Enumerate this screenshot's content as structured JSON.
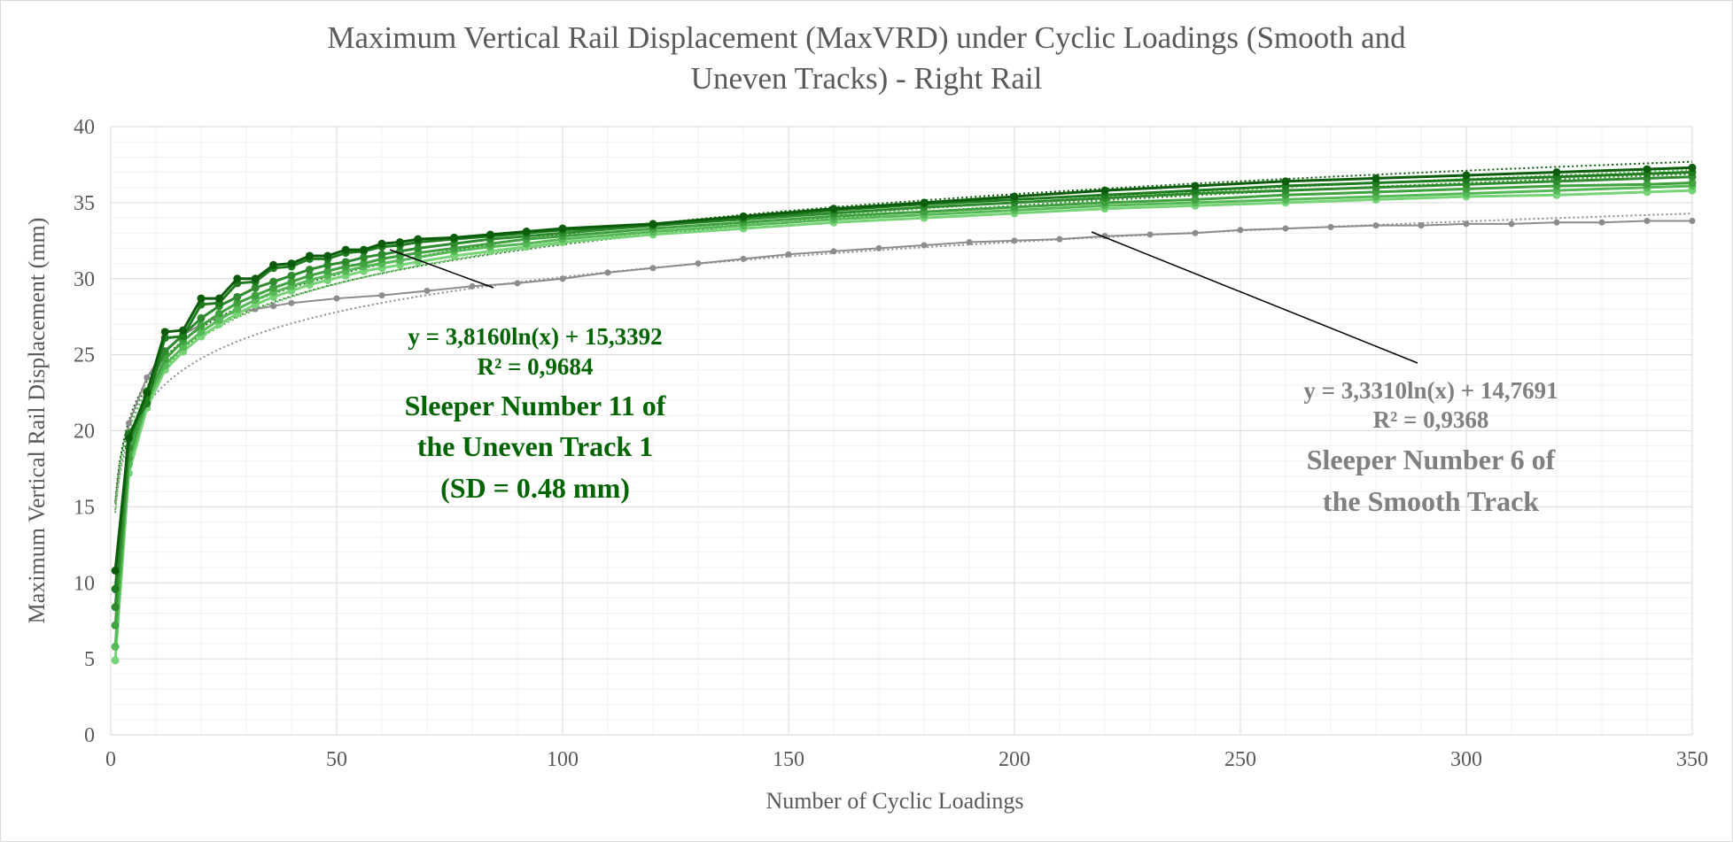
{
  "chart_data": {
    "type": "line",
    "title": "Maximum Vertical Rail Displacement (MaxVRD) under Cyclic Loadings (Smooth and Uneven Tracks) - Right Rail",
    "title_lines": [
      "Maximum Vertical Rail Displacement (MaxVRD) under Cyclic Loadings (Smooth and",
      "Uneven Tracks) - Right Rail"
    ],
    "xlabel": "Number of Cyclic Loadings",
    "ylabel": "Maximum Vertical Rail Displacement (mm)",
    "xlim": [
      0,
      350
    ],
    "ylim": [
      0,
      40
    ],
    "x_ticks": [
      0,
      50,
      100,
      150,
      200,
      250,
      300,
      350
    ],
    "y_ticks": [
      0,
      5,
      10,
      15,
      20,
      25,
      30,
      35,
      40
    ],
    "grid": true,
    "minor_grid": true,
    "legend": "none",
    "series": [
      {
        "color": "#0b5d0b",
        "x": [
          1,
          4,
          8,
          12,
          16,
          20,
          24,
          28,
          32,
          36,
          40,
          44,
          48,
          52,
          56,
          60,
          64,
          68,
          76,
          84,
          92,
          100,
          120,
          140,
          160,
          180,
          200,
          220,
          240,
          260,
          280,
          300,
          320,
          340,
          350
        ],
        "values": [
          10.8,
          19.5,
          22.5,
          26.5,
          26.6,
          28.7,
          28.7,
          30.0,
          30.0,
          30.9,
          31.0,
          31.5,
          31.5,
          31.9,
          31.9,
          32.3,
          32.4,
          32.6,
          32.7,
          32.9,
          33.1,
          33.3,
          33.6,
          34.1,
          34.6,
          35.0,
          35.4,
          35.8,
          36.1,
          36.4,
          36.6,
          36.8,
          37.0,
          37.2,
          37.3
        ]
      },
      {
        "color": "#1e7b1e",
        "x": [
          1,
          4,
          8,
          12,
          16,
          20,
          24,
          28,
          32,
          36,
          40,
          44,
          48,
          52,
          56,
          60,
          64,
          68,
          76,
          84,
          92,
          100,
          120,
          140,
          160,
          180,
          200,
          220,
          240,
          260,
          280,
          300,
          320,
          340,
          350
        ],
        "values": [
          9.6,
          19.8,
          21.8,
          26.1,
          26.2,
          28.3,
          28.4,
          29.7,
          29.8,
          30.7,
          30.8,
          31.3,
          31.3,
          31.7,
          31.8,
          32.1,
          32.2,
          32.4,
          32.6,
          32.8,
          33.0,
          33.2,
          33.5,
          34.0,
          34.5,
          34.9,
          35.2,
          35.5,
          35.8,
          36.1,
          36.3,
          36.5,
          36.7,
          36.9,
          37.0
        ]
      },
      {
        "color": "#2e8b2e",
        "x": [
          1,
          4,
          8,
          12,
          16,
          20,
          24,
          28,
          32,
          36,
          40,
          44,
          48,
          52,
          56,
          60,
          64,
          68,
          76,
          84,
          92,
          100,
          120,
          140,
          160,
          180,
          200,
          220,
          240,
          260,
          280,
          300,
          320,
          340,
          350
        ],
        "values": [
          8.4,
          18.9,
          22.6,
          25.2,
          26.3,
          27.4,
          28.2,
          28.8,
          29.4,
          29.8,
          30.2,
          30.6,
          30.9,
          31.1,
          31.4,
          31.6,
          31.8,
          32.0,
          32.3,
          32.6,
          32.8,
          33.0,
          33.5,
          33.9,
          34.3,
          34.7,
          35.0,
          35.3,
          35.6,
          35.8,
          36.0,
          36.2,
          36.4,
          36.6,
          36.7
        ]
      },
      {
        "color": "#3fa23f",
        "x": [
          1,
          4,
          8,
          12,
          16,
          20,
          24,
          28,
          32,
          36,
          40,
          44,
          48,
          52,
          56,
          60,
          64,
          68,
          76,
          84,
          92,
          100,
          120,
          140,
          160,
          180,
          200,
          220,
          240,
          260,
          280,
          300,
          320,
          340,
          350
        ],
        "values": [
          7.2,
          18.2,
          22.2,
          24.7,
          25.9,
          26.9,
          27.7,
          28.4,
          28.9,
          29.4,
          29.8,
          30.2,
          30.5,
          30.8,
          31.0,
          31.3,
          31.5,
          31.7,
          32.0,
          32.3,
          32.6,
          32.8,
          33.3,
          33.7,
          34.1,
          34.4,
          34.7,
          35.0,
          35.2,
          35.5,
          35.7,
          35.9,
          36.1,
          36.2,
          36.3
        ]
      },
      {
        "color": "#55b955",
        "x": [
          1,
          4,
          8,
          12,
          16,
          20,
          24,
          28,
          32,
          36,
          40,
          44,
          48,
          52,
          56,
          60,
          64,
          68,
          76,
          84,
          92,
          100,
          120,
          140,
          160,
          180,
          200,
          220,
          240,
          260,
          280,
          300,
          320,
          340,
          350
        ],
        "values": [
          5.8,
          17.8,
          21.9,
          24.3,
          25.5,
          26.5,
          27.3,
          28.0,
          28.6,
          29.1,
          29.5,
          29.9,
          30.2,
          30.5,
          30.8,
          31.0,
          31.2,
          31.4,
          31.8,
          32.1,
          32.3,
          32.6,
          33.1,
          33.5,
          33.9,
          34.2,
          34.5,
          34.8,
          35.0,
          35.2,
          35.4,
          35.6,
          35.8,
          36.0,
          36.1
        ]
      },
      {
        "color": "#76d376",
        "x": [
          1,
          4,
          8,
          12,
          16,
          20,
          24,
          28,
          32,
          36,
          40,
          44,
          48,
          52,
          56,
          60,
          64,
          68,
          76,
          84,
          92,
          100,
          120,
          140,
          160,
          180,
          200,
          220,
          240,
          260,
          280,
          300,
          320,
          340,
          350
        ],
        "values": [
          4.9,
          17.2,
          21.5,
          24.0,
          25.2,
          26.2,
          27.0,
          27.7,
          28.3,
          28.8,
          29.2,
          29.6,
          29.9,
          30.2,
          30.5,
          30.7,
          30.9,
          31.1,
          31.5,
          31.8,
          32.1,
          32.4,
          32.9,
          33.3,
          33.7,
          34.0,
          34.3,
          34.6,
          34.8,
          35.0,
          35.2,
          35.4,
          35.5,
          35.7,
          35.8
        ]
      },
      {
        "color": "#8c8c8c",
        "x": [
          1,
          4,
          8,
          12,
          16,
          20,
          24,
          28,
          32,
          36,
          40,
          50,
          60,
          70,
          80,
          90,
          100,
          110,
          120,
          130,
          140,
          150,
          160,
          170,
          180,
          190,
          200,
          210,
          220,
          230,
          240,
          250,
          260,
          270,
          280,
          290,
          300,
          310,
          320,
          330,
          340,
          350
        ],
        "values": [
          9.5,
          20.5,
          23.5,
          25.3,
          26.3,
          27.0,
          27.5,
          27.8,
          28.0,
          28.2,
          28.4,
          28.7,
          28.9,
          29.2,
          29.5,
          29.7,
          30.0,
          30.4,
          30.7,
          31.0,
          31.3,
          31.6,
          31.8,
          32.0,
          32.2,
          32.4,
          32.5,
          32.6,
          32.8,
          32.9,
          33.0,
          33.2,
          33.3,
          33.4,
          33.5,
          33.5,
          33.6,
          33.6,
          33.7,
          33.7,
          33.8,
          33.8
        ]
      }
    ],
    "trendlines": [
      {
        "type": "logarithmic",
        "slope": 3.816,
        "intercept": 15.3392,
        "color": "#0b5d0b"
      },
      {
        "type": "logarithmic",
        "slope": 3.7,
        "intercept": 15.2,
        "color": "#2e8b2e"
      },
      {
        "type": "logarithmic",
        "slope": 3.85,
        "intercept": 14.6,
        "color": "#55b955"
      },
      {
        "type": "logarithmic",
        "slope": 3.331,
        "intercept": 14.7691,
        "color": "#8c8c8c"
      }
    ],
    "annotations": [
      {
        "text": "y = 3,8160ln(x) + 15,3392",
        "color": "#006400",
        "role": "green-equation"
      },
      {
        "text": "R² = 0,9684",
        "color": "#006400",
        "role": "green-r2"
      },
      {
        "text": "Sleeper Number 11 of",
        "color": "#006400",
        "role": "green-label-1"
      },
      {
        "text": "the Uneven Track 1",
        "color": "#006400",
        "role": "green-label-2"
      },
      {
        "text": "(SD = 0.48 mm)",
        "color": "#006400",
        "role": "green-label-3"
      },
      {
        "text": "y = 3,3310ln(x) + 14,7691",
        "color": "#808080",
        "role": "gray-equation"
      },
      {
        "text": "R² = 0,9368",
        "color": "#808080",
        "role": "gray-r2"
      },
      {
        "text": "Sleeper Number 6 of",
        "color": "#808080",
        "role": "gray-label-1"
      },
      {
        "text": "the Smooth Track",
        "color": "#808080",
        "role": "gray-label-2"
      }
    ]
  }
}
